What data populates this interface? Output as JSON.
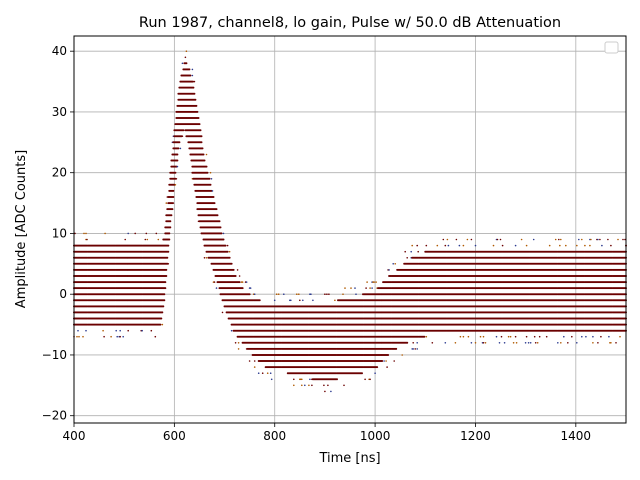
{
  "chart_data": {
    "type": "scatter",
    "title": "Run 1987, channel8, lo gain, Pulse w/ 50.0 dB Attenuation",
    "xlabel": "Time [ns]",
    "ylabel": "Amplitude [ADC Counts]",
    "xlim": [
      400,
      1500
    ],
    "ylim": [
      -21.2,
      42.5
    ],
    "xticks": [
      "400",
      "600",
      "800",
      "1000",
      "1200",
      "1400"
    ],
    "xtick_values": [
      400,
      600,
      800,
      1000,
      1200,
      1400
    ],
    "yticks": [
      "−20",
      "−10",
      "0",
      "10",
      "20",
      "30",
      "40"
    ],
    "ytick_values": [
      -20,
      -10,
      0,
      10,
      20,
      30,
      40
    ],
    "grid": true,
    "legend": "top-right",
    "point_colors": [
      "#6b0000",
      "#b05a00",
      "#2b3a8f"
    ],
    "series": [
      {
        "band_edges": {
          "x": [
            400,
            570,
            580,
            590,
            600,
            610,
            620,
            630,
            640,
            650,
            660,
            680,
            700,
            720,
            740,
            760,
            780,
            800,
            850,
            900,
            950,
            1000,
            1020,
            1050,
            1080,
            1100,
            1150,
            1200,
            1500
          ],
          "low": [
            -5.5,
            -5.5,
            -1,
            9,
            18,
            25,
            28,
            24,
            18,
            12,
            8,
            4,
            -2,
            -6,
            -8,
            -10,
            -11.5,
            -12,
            -13,
            -14,
            -13,
            -12,
            -10,
            -8,
            -7,
            -6.5,
            -6,
            -6,
            -6
          ],
          "high": [
            7.5,
            7.5,
            9,
            18,
            27,
            34,
            38,
            37,
            33,
            28,
            22,
            15,
            8,
            3,
            0,
            -1,
            -2,
            -2,
            -2,
            -2,
            -1,
            0,
            2,
            4,
            6,
            6.5,
            7,
            7,
            7.5
          ]
        }
      }
    ]
  }
}
